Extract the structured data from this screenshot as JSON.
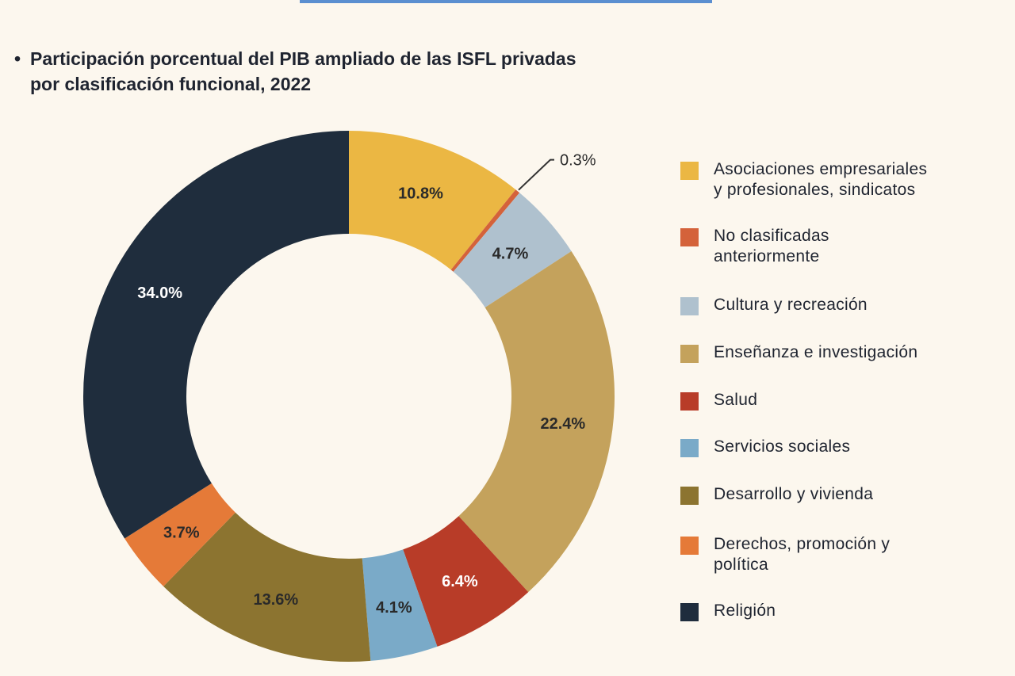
{
  "chart_data": {
    "type": "pie",
    "donut": true,
    "title": "Participación porcentual del PIB ampliado de las ISFL privadas por clasificación funcional, 2022",
    "title_lines": [
      "Participación porcentual del PIB ampliado de las ISFL privadas",
      "por clasificación funcional, 2022"
    ],
    "legend_position": "right",
    "slices": [
      {
        "name": "Asociaciones empresariales y profesionales, sindicatos",
        "value": 10.8,
        "label": "10.8%",
        "color": "#ebb743",
        "label_color": "#2a2a2a"
      },
      {
        "name": "No clasificadas anteriormente",
        "value": 0.3,
        "label": "0.3%",
        "color": "#d4623a",
        "label_color": "#2a2a2a"
      },
      {
        "name": "Cultura y recreación",
        "value": 4.7,
        "label": "4.7%",
        "color": "#afc1ce",
        "label_color": "#2a2a2a"
      },
      {
        "name": "Enseñanza e investigación",
        "value": 22.4,
        "label": "22.4%",
        "color": "#c4a25c",
        "label_color": "#2a2a2a"
      },
      {
        "name": "Salud",
        "value": 6.4,
        "label": "6.4%",
        "color": "#b83c28",
        "label_color": "#ffffff"
      },
      {
        "name": "Servicios sociales",
        "value": 4.1,
        "label": "4.1%",
        "color": "#7aaac8",
        "label_color": "#2a2a2a"
      },
      {
        "name": "Desarrollo y vivienda",
        "value": 13.6,
        "label": "13.6%",
        "color": "#8c7430",
        "label_color": "#2a2a2a"
      },
      {
        "name": "Derechos, promoción y política",
        "value": 3.7,
        "label": "3.7%",
        "color": "#e57a38",
        "label_color": "#2a2a2a"
      },
      {
        "name": "Religión",
        "value": 34.0,
        "label": "34.0%",
        "color": "#1f2d3d",
        "label_color": "#ffffff"
      }
    ],
    "legend_lines": [
      [
        "Asociaciones empresariales",
        "y profesionales, sindicatos"
      ],
      [
        "No clasificadas",
        "anteriormente"
      ],
      [
        "Cultura y recreación"
      ],
      [
        "Enseñanza e investigación"
      ],
      [
        "Salud"
      ],
      [
        "Servicios sociales"
      ],
      [
        "Desarrollo y vivienda"
      ],
      [
        "Derechos, promoción y",
        "política"
      ],
      [
        "Religión"
      ]
    ]
  }
}
